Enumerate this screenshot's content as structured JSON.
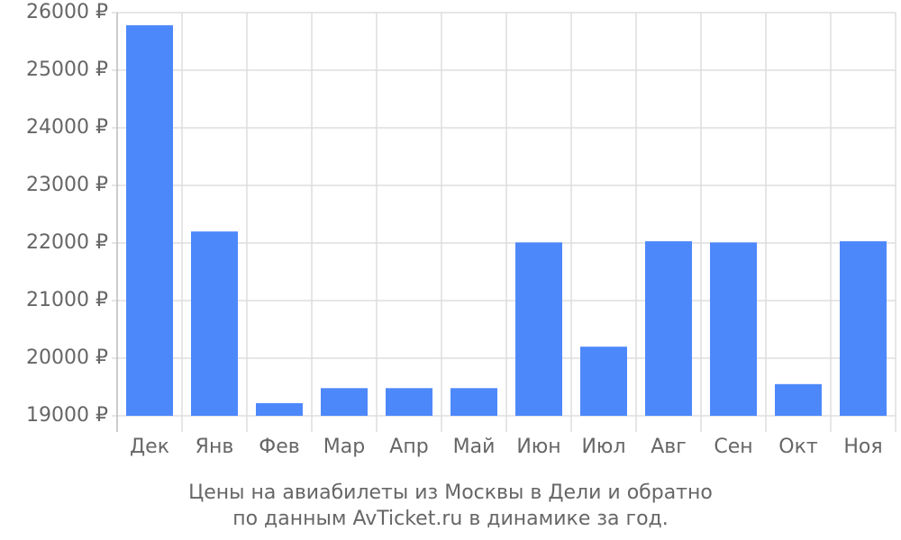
{
  "chart_data": {
    "type": "bar",
    "caption": [
      "Цены на авиабилеты из Москвы в Дели и обратно",
      "по данным AvTicket.ru в динамике за год."
    ],
    "categories": [
      "Дек",
      "Янв",
      "Фев",
      "Мар",
      "Апр",
      "Май",
      "Июн",
      "Июл",
      "Авг",
      "Сен",
      "Окт",
      "Ноя"
    ],
    "values": [
      25780,
      22200,
      19220,
      19480,
      19480,
      19480,
      22010,
      20200,
      22030,
      22010,
      19550,
      22030
    ],
    "color": "#4d88fb",
    "ylim": [
      19000,
      26000
    ],
    "yticks": [
      {
        "value": 19000,
        "label": "19000 ₽"
      },
      {
        "value": 20000,
        "label": "20000 ₽"
      },
      {
        "value": 21000,
        "label": "21000 ₽"
      },
      {
        "value": 22000,
        "label": "22000 ₽"
      },
      {
        "value": 23000,
        "label": "23000 ₽"
      },
      {
        "value": 24000,
        "label": "24000 ₽"
      },
      {
        "value": 25000,
        "label": "25000 ₽"
      },
      {
        "value": 26000,
        "label": "26000 ₽"
      }
    ],
    "grid": true
  }
}
